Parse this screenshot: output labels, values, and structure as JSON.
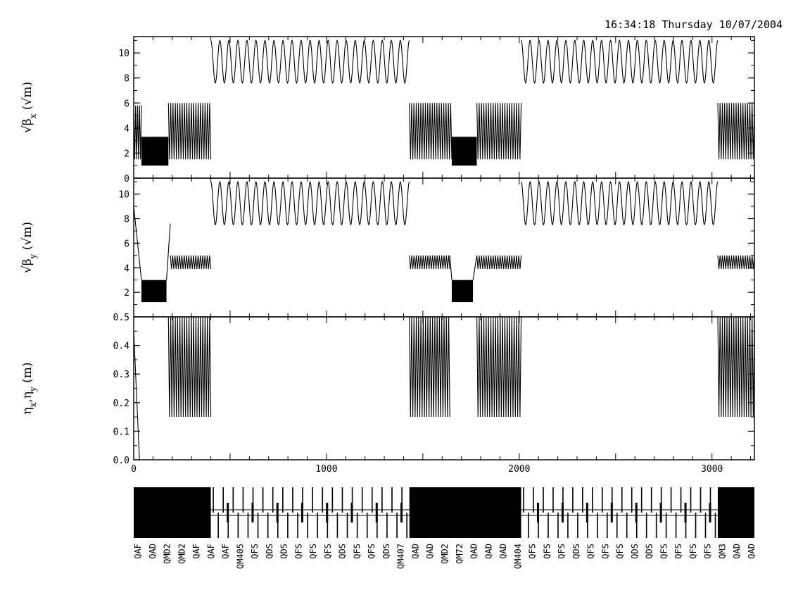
{
  "timestamp": "16:34:18 Thursday 10/07/2004",
  "chart_data": [
    {
      "type": "line",
      "ylabel": "√β_x (√m)",
      "ylabel_parts": {
        "sqrt": "√",
        "sym": "β",
        "sub": "x",
        "unit": " (√m)"
      },
      "xlim": [
        0,
        3220
      ],
      "ylim": [
        0,
        11.3
      ],
      "yticks": [
        0,
        2,
        4,
        6,
        8,
        10
      ],
      "ytick_labels": [
        "0",
        "2",
        "4",
        "6",
        "8",
        "10"
      ],
      "segments": [
        {
          "x": [
            0,
            40
          ],
          "pattern": "dense",
          "low": 1.5,
          "high": 5.8
        },
        {
          "x": [
            40,
            180
          ],
          "pattern": "block",
          "low": 1.0,
          "high": 3.3
        },
        {
          "x": [
            180,
            400
          ],
          "pattern": "dense",
          "low": 1.5,
          "high": 6.0
        },
        {
          "x": [
            400,
            1430
          ],
          "pattern": "wave",
          "low": 7.6,
          "high": 11.0,
          "periods": 22
        },
        {
          "x": [
            1430,
            1650
          ],
          "pattern": "dense",
          "low": 1.5,
          "high": 6.0
        },
        {
          "x": [
            1650,
            1780
          ],
          "pattern": "block",
          "low": 1.0,
          "high": 3.3
        },
        {
          "x": [
            1780,
            2010
          ],
          "pattern": "dense",
          "low": 1.5,
          "high": 6.0
        },
        {
          "x": [
            2010,
            3030
          ],
          "pattern": "wave",
          "low": 7.6,
          "high": 11.0,
          "periods": 22
        },
        {
          "x": [
            3030,
            3220
          ],
          "pattern": "dense",
          "low": 1.5,
          "high": 6.0
        }
      ]
    },
    {
      "type": "line",
      "ylabel": "√β_y (√m)",
      "ylabel_parts": {
        "sqrt": "√",
        "sym": "β",
        "sub": "y",
        "unit": " (√m)"
      },
      "xlim": [
        0,
        3220
      ],
      "ylim": [
        0,
        11.3
      ],
      "yticks": [
        2,
        4,
        6,
        8,
        10
      ],
      "ytick_labels": [
        "2",
        "4",
        "6",
        "8",
        "10"
      ],
      "segments": [
        {
          "x": [
            0,
            40
          ],
          "pattern": "decay",
          "low": 3.0,
          "high": 9.0
        },
        {
          "x": [
            40,
            170
          ],
          "pattern": "block",
          "low": 1.2,
          "high": 3.0
        },
        {
          "x": [
            170,
            190
          ],
          "pattern": "rise",
          "low": 3.0,
          "high": 7.6
        },
        {
          "x": [
            190,
            400
          ],
          "pattern": "dense",
          "low": 3.9,
          "high": 5.0
        },
        {
          "x": [
            400,
            1430
          ],
          "pattern": "wave",
          "low": 7.5,
          "high": 11.0,
          "periods": 22
        },
        {
          "x": [
            1430,
            1640
          ],
          "pattern": "dense",
          "low": 3.9,
          "high": 5.0
        },
        {
          "x": [
            1640,
            1650
          ],
          "pattern": "decay",
          "low": 3.0,
          "high": 5.0
        },
        {
          "x": [
            1650,
            1760
          ],
          "pattern": "block",
          "low": 1.2,
          "high": 3.0
        },
        {
          "x": [
            1760,
            1780
          ],
          "pattern": "rise",
          "low": 3.0,
          "high": 5.0
        },
        {
          "x": [
            1780,
            2010
          ],
          "pattern": "dense",
          "low": 3.9,
          "high": 5.0
        },
        {
          "x": [
            2010,
            3030
          ],
          "pattern": "wave",
          "low": 7.5,
          "high": 11.0,
          "periods": 22
        },
        {
          "x": [
            3030,
            3220
          ],
          "pattern": "dense",
          "low": 3.9,
          "high": 5.0
        }
      ]
    },
    {
      "type": "line",
      "ylabel": "η_x, η_y (m)",
      "ylabel_parts": {
        "sym": "η",
        "sub": "x",
        "sep": ",",
        "sym2": "η",
        "sub2": "y",
        "unit": " (m)"
      },
      "xlim": [
        0,
        3220
      ],
      "ylim": [
        0,
        0.5
      ],
      "yticks": [
        0,
        0.1,
        0.2,
        0.3,
        0.4,
        0.5
      ],
      "ytick_labels": [
        "0.0",
        "0.1",
        "0.2",
        "0.3",
        "0.4",
        "0.5"
      ],
      "xticks": [
        0,
        1000,
        2000,
        3000
      ],
      "xtick_labels": [
        "0",
        "1000",
        "2000",
        "3000"
      ],
      "segments": [
        {
          "x": [
            0,
            30
          ],
          "pattern": "decay",
          "low": 0.0,
          "high": 0.45
        },
        {
          "x": [
            180,
            400
          ],
          "pattern": "dense",
          "low": 0.15,
          "high": 0.5
        },
        {
          "x": [
            1430,
            1640
          ],
          "pattern": "dense",
          "low": 0.15,
          "high": 0.5
        },
        {
          "x": [
            1780,
            2010
          ],
          "pattern": "dense",
          "low": 0.15,
          "high": 0.5
        },
        {
          "x": [
            3030,
            3220
          ],
          "pattern": "dense",
          "low": 0.15,
          "high": 0.5
        }
      ]
    },
    {
      "type": "diagram",
      "name": "lattice",
      "dense_regions": [
        [
          0,
          400
        ],
        [
          1430,
          2010
        ],
        [
          3030,
          3220
        ]
      ],
      "sparse_count_per_arc": 40,
      "element_labels": [
        "QAF",
        "QAD",
        "QMD2",
        "QMD2",
        "QAF",
        "QAF",
        "QAF",
        "QM405",
        "QFS",
        "QDS",
        "QDS",
        "QFS",
        "QFS",
        "QFS",
        "QDS",
        "QFS",
        "QFS",
        "QDS",
        "QM407",
        "QAD",
        "QAD",
        "QMD2",
        "QM72",
        "QAD",
        "QAD",
        "QAD",
        "QM404",
        "QFS",
        "QFS",
        "QFS",
        "QDS",
        "QFS",
        "QFS",
        "QFS",
        "QDS",
        "QDS",
        "QFS",
        "QFS",
        "QFS",
        "QFS",
        "QM3",
        "QAD",
        "QAD"
      ]
    }
  ]
}
